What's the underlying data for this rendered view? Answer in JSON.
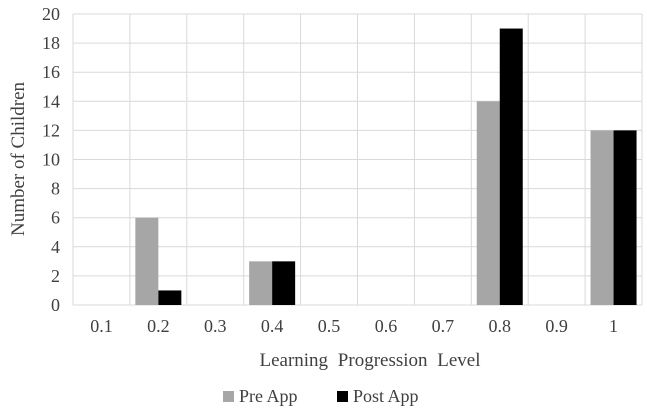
{
  "chart_data": {
    "type": "bar",
    "title": "",
    "xlabel": "Learning Progression Level",
    "ylabel": "Number of Children",
    "categories": [
      "0.1",
      "0.2",
      "0.3",
      "0.4",
      "0.5",
      "0.6",
      "0.7",
      "0.8",
      "0.9",
      "1"
    ],
    "series": [
      {
        "name": "Pre App",
        "color": "#a6a6a6",
        "values": [
          0,
          6,
          0,
          3,
          0,
          0,
          0,
          14,
          0,
          12
        ]
      },
      {
        "name": "Post App",
        "color": "#000000",
        "values": [
          0,
          1,
          0,
          3,
          0,
          0,
          0,
          19,
          0,
          12
        ]
      }
    ],
    "ylim": [
      0,
      20
    ],
    "yticks": [
      "0",
      "2",
      "4",
      "6",
      "8",
      "10",
      "12",
      "14",
      "16",
      "18",
      "20"
    ],
    "grid": true,
    "legend_position": "bottom-center"
  }
}
